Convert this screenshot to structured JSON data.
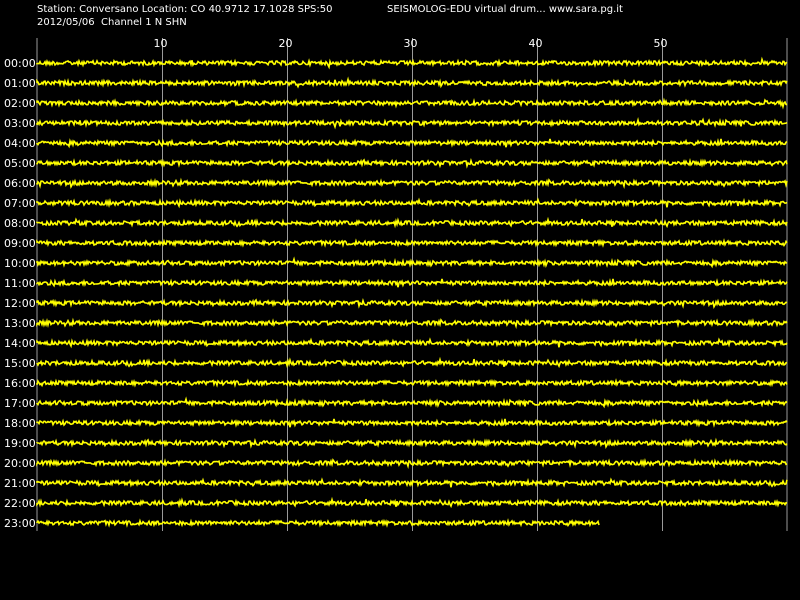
{
  "header": {
    "station_line": "Station: Conversano Location: CO 40.9712 17.1028 SPS:50",
    "date_channel_line": "2012/05/06  Channel 1 N SHN",
    "brand": "SEISMOLOG-EDU virtual drum... www.sara.pg.it"
  },
  "colors": {
    "background": "#000000",
    "trace": "#ffff00",
    "grid": "#9a9a9a",
    "text": "#ffffff"
  },
  "chart_data": {
    "type": "line",
    "title": "",
    "xlabel": "",
    "ylabel": "",
    "x_ticks": [
      "10",
      "20",
      "30",
      "40",
      "50"
    ],
    "x_tick_values": [
      10,
      20,
      30,
      40,
      50
    ],
    "xlim": [
      0,
      60
    ],
    "grid": true,
    "hour_labels": [
      "00:00",
      "01:00",
      "02:00",
      "03:00",
      "04:00",
      "05:00",
      "06:00",
      "07:00",
      "08:00",
      "09:00",
      "10:00",
      "11:00",
      "12:00",
      "13:00",
      "14:00",
      "15:00",
      "16:00",
      "17:00",
      "18:00",
      "19:00",
      "20:00",
      "21:00",
      "22:00",
      "23:00"
    ],
    "trace_end_minutes": [
      60,
      60,
      60,
      60,
      60,
      60,
      60,
      60,
      60,
      60,
      60,
      60,
      60,
      60,
      60,
      60,
      60,
      60,
      60,
      60,
      60,
      60,
      60,
      45
    ]
  }
}
